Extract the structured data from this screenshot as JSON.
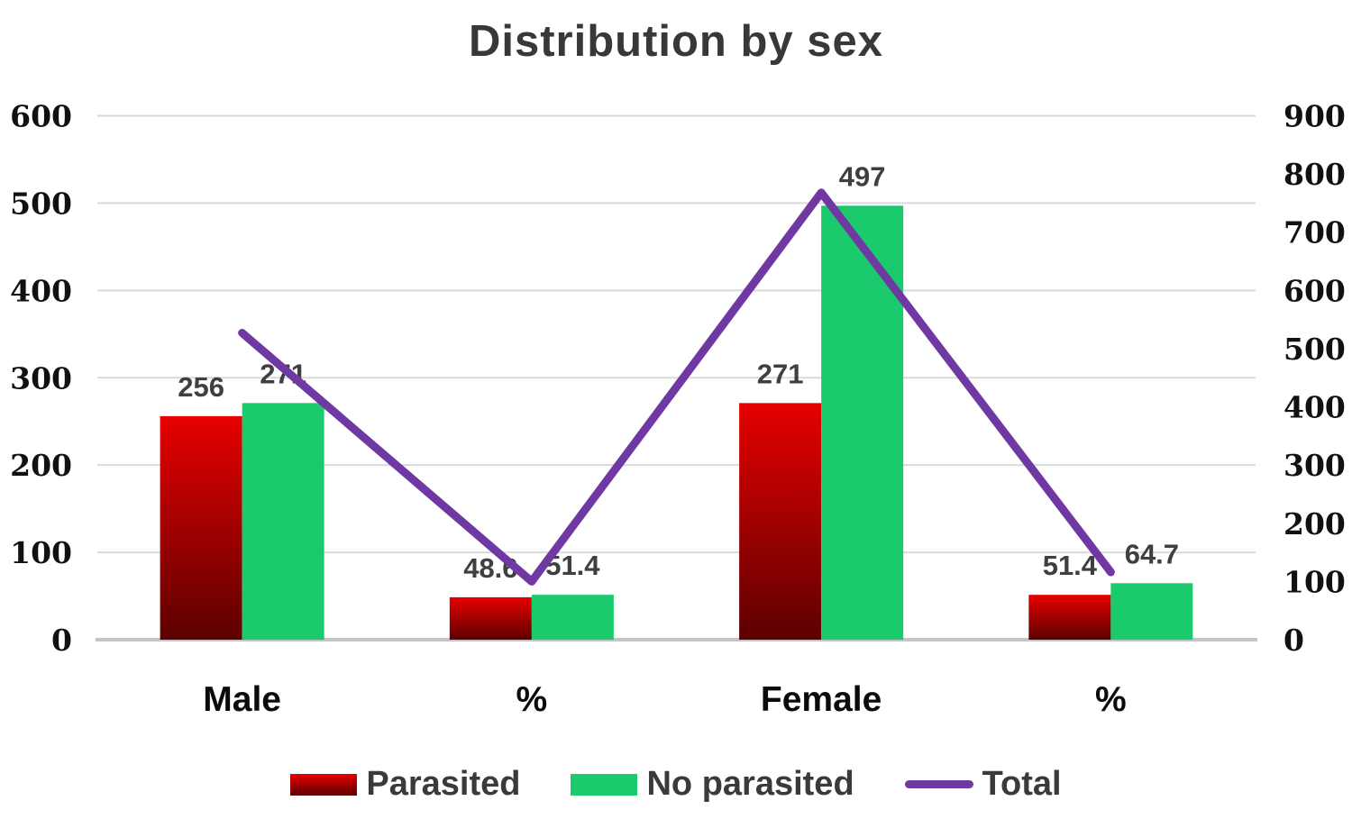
{
  "chart_data": {
    "type": "combo-bar-line",
    "title": "Distribution by sex",
    "categories": [
      "Male",
      "%",
      "Female",
      "%"
    ],
    "series": [
      {
        "name": "Parasited",
        "type": "bar",
        "axis": "left",
        "values": [
          256,
          48.6,
          271,
          51.4
        ],
        "labels": [
          "256",
          "48.6",
          "271",
          "51.4"
        ],
        "color_top": "#e60000",
        "color_bottom": "#5c0000"
      },
      {
        "name": "No parasited",
        "type": "bar",
        "axis": "left",
        "values": [
          271,
          51.4,
          497,
          64.7
        ],
        "labels": [
          "271",
          "51.4",
          "497",
          "64.7"
        ],
        "color": "#1aca6c"
      },
      {
        "name": "Total",
        "type": "line",
        "axis": "right",
        "values": [
          527,
          100,
          768,
          116.1
        ],
        "color": "#7038a2"
      }
    ],
    "axes": {
      "left": {
        "min": 0,
        "max": 600,
        "step": 100,
        "tick_labels": [
          "0",
          "100",
          "200",
          "300",
          "400",
          "500",
          "600"
        ]
      },
      "right": {
        "min": 0,
        "max": 900,
        "step": 100,
        "tick_labels": [
          "0",
          "100",
          "200",
          "300",
          "400",
          "500",
          "600",
          "700",
          "800",
          "900"
        ]
      }
    },
    "grid": true,
    "legend_position": "bottom",
    "colors": {
      "gridline": "#d9d9d9",
      "axis_line": "#c4c4c4",
      "data_label": "#3f3f3f",
      "tick_label": "#111111",
      "category_label": "#0b0b0b",
      "title": "#383838"
    }
  }
}
